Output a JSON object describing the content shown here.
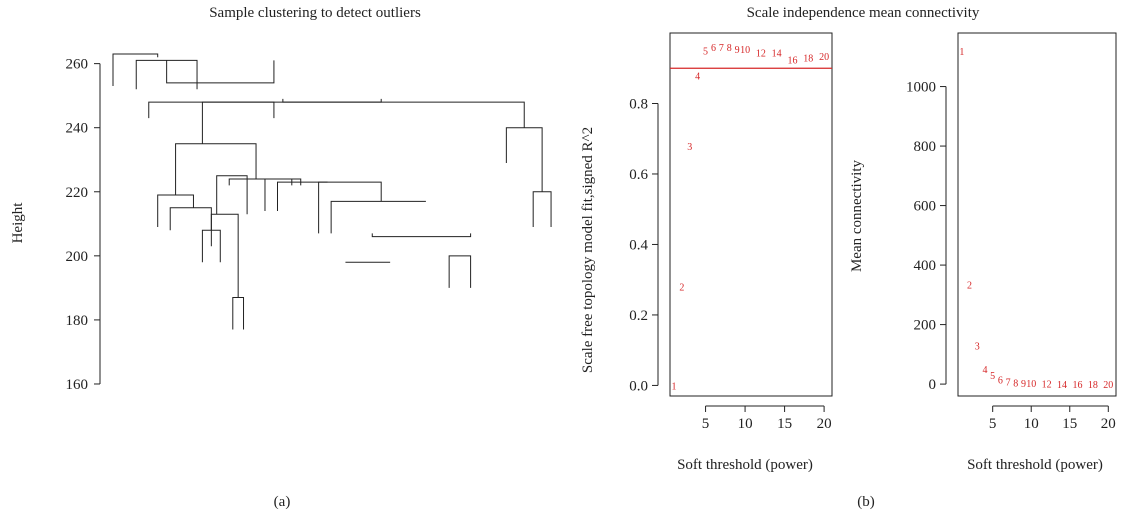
{
  "figure": {
    "panel_a_caption": "(a)",
    "panel_b_caption": "(b)"
  },
  "colors": {
    "ink": "#222222",
    "highlight": "#d62728"
  },
  "chart_data": [
    {
      "type": "dendrogram",
      "title": "Sample clustering to detect outliers",
      "ylabel": "Height",
      "ylim": [
        155,
        268
      ],
      "yticks": [
        160,
        180,
        200,
        220,
        240,
        260
      ],
      "merges": [
        {
          "x1": 1,
          "y1": 253,
          "x2": 3.5,
          "y2": 262,
          "h": 263
        },
        {
          "x1": 2.3,
          "y1": 252,
          "x2": 5.7,
          "y2": 252,
          "h": 261
        },
        {
          "x1": 4,
          "y1": 261,
          "x2": 10,
          "y2": 261,
          "h": 254
        },
        {
          "x1": 3,
          "y1": 243,
          "x2": 10,
          "y2": 243,
          "h": 248
        },
        {
          "x1": 10.5,
          "y1": 249,
          "x2": 16,
          "y2": 249,
          "h": 248
        },
        {
          "x1": 6,
          "y1": 235,
          "x2": 24,
          "y2": 240,
          "h": 248
        },
        {
          "x1": 23,
          "y1": 229,
          "x2": 25,
          "y2": 220,
          "h": 240
        },
        {
          "x1": 24.5,
          "y1": 209,
          "x2": 25.5,
          "y2": 209,
          "h": 220
        },
        {
          "x1": 4.5,
          "y1": 219,
          "x2": 9,
          "y2": 224,
          "h": 235
        },
        {
          "x1": 3.5,
          "y1": 209,
          "x2": 5.5,
          "y2": 215,
          "h": 219
        },
        {
          "x1": 4.2,
          "y1": 208,
          "x2": 6.5,
          "y2": 208,
          "h": 215
        },
        {
          "x1": 6,
          "y1": 198,
          "x2": 7,
          "y2": 198,
          "h": 208
        },
        {
          "x1": 7.5,
          "y1": 222,
          "x2": 11,
          "y2": 222,
          "h": 224
        },
        {
          "x1": 6.8,
          "y1": 213,
          "x2": 8.5,
          "y2": 213,
          "h": 225
        },
        {
          "x1": 6.5,
          "y1": 203,
          "x2": 8,
          "y2": 187,
          "h": 213
        },
        {
          "x1": 7.7,
          "y1": 177,
          "x2": 8.3,
          "y2": 177,
          "h": 187
        },
        {
          "x1": 9.5,
          "y1": 214,
          "x2": 11.5,
          "y2": 222,
          "h": 224
        },
        {
          "x1": 10.2,
          "y1": 214,
          "x2": 13,
          "y2": 223,
          "h": 223
        },
        {
          "x1": 12.5,
          "y1": 207,
          "x2": 16,
          "y2": 217,
          "h": 223
        },
        {
          "x1": 13.2,
          "y1": 207,
          "x2": 18.5,
          "y2": 217,
          "h": 217
        },
        {
          "x1": 15.5,
          "y1": 207,
          "x2": 21,
          "y2": 207,
          "h": 206
        },
        {
          "x1": 14,
          "y1": 198,
          "x2": 16.5,
          "y2": 198,
          "h": 198
        },
        {
          "x1": 19.8,
          "y1": 190,
          "x2": 21,
          "y2": 190,
          "h": 200
        }
      ]
    },
    {
      "type": "scatter",
      "title": "Scale independence mean connectivity",
      "xlabel": "Soft threshold (power)",
      "ylabel": "Scale free topology model fit,signed R^2",
      "xlim": [
        0.5,
        21
      ],
      "ylim": [
        -0.03,
        1.0
      ],
      "xticks": [
        5,
        10,
        15,
        20
      ],
      "yticks": [
        0.0,
        0.2,
        0.4,
        0.6,
        0.8
      ],
      "hline": 0.9,
      "x": [
        1,
        2,
        3,
        4,
        5,
        6,
        7,
        8,
        9,
        10,
        12,
        14,
        16,
        18,
        20
      ],
      "y": [
        0.0,
        0.28,
        0.68,
        0.88,
        0.95,
        0.96,
        0.96,
        0.96,
        0.955,
        0.955,
        0.945,
        0.945,
        0.925,
        0.93,
        0.935
      ],
      "labels": [
        "1",
        "2",
        "3",
        "4",
        "5",
        "6",
        "7",
        "8",
        "9",
        "10",
        "12",
        "14",
        "16",
        "18",
        "20"
      ]
    },
    {
      "type": "scatter",
      "title": "",
      "xlabel": "Soft threshold (power)",
      "ylabel": "Mean connectivity",
      "xlim": [
        0.5,
        21
      ],
      "ylim": [
        -40,
        1180
      ],
      "xticks": [
        5,
        10,
        15,
        20
      ],
      "yticks": [
        0,
        200,
        400,
        600,
        800,
        1000
      ],
      "x": [
        1,
        2,
        3,
        4,
        5,
        6,
        7,
        8,
        9,
        10,
        12,
        14,
        16,
        18,
        20
      ],
      "y": [
        1120,
        335,
        130,
        50,
        30,
        15,
        9,
        6,
        4,
        3,
        2,
        1,
        1,
        0,
        0
      ],
      "labels": [
        "1",
        "2",
        "3",
        "4",
        "5",
        "6",
        "7",
        "8",
        "9",
        "10",
        "12",
        "14",
        "16",
        "18",
        "20"
      ]
    }
  ]
}
